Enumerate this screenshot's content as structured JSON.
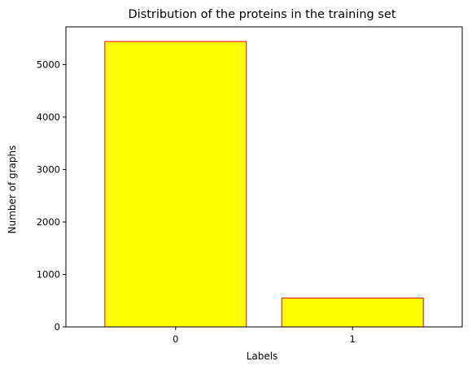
{
  "chart_data": {
    "type": "bar",
    "title": "Distribution of the proteins in the training set",
    "xlabel": "Labels",
    "ylabel": "Number of graphs",
    "categories": [
      "0",
      "1"
    ],
    "values": [
      5440,
      550
    ],
    "ylim": [
      0,
      5720
    ],
    "yticks": [
      0,
      1000,
      2000,
      3000,
      4000,
      5000
    ],
    "ytick_labels": [
      "0",
      "1000",
      "2000",
      "3000",
      "4000",
      "5000"
    ],
    "grid": false,
    "legend": "none",
    "bar_fill_color": "#ffff00",
    "bar_edge_color": "#e0002a",
    "axis_color": "#000000"
  }
}
